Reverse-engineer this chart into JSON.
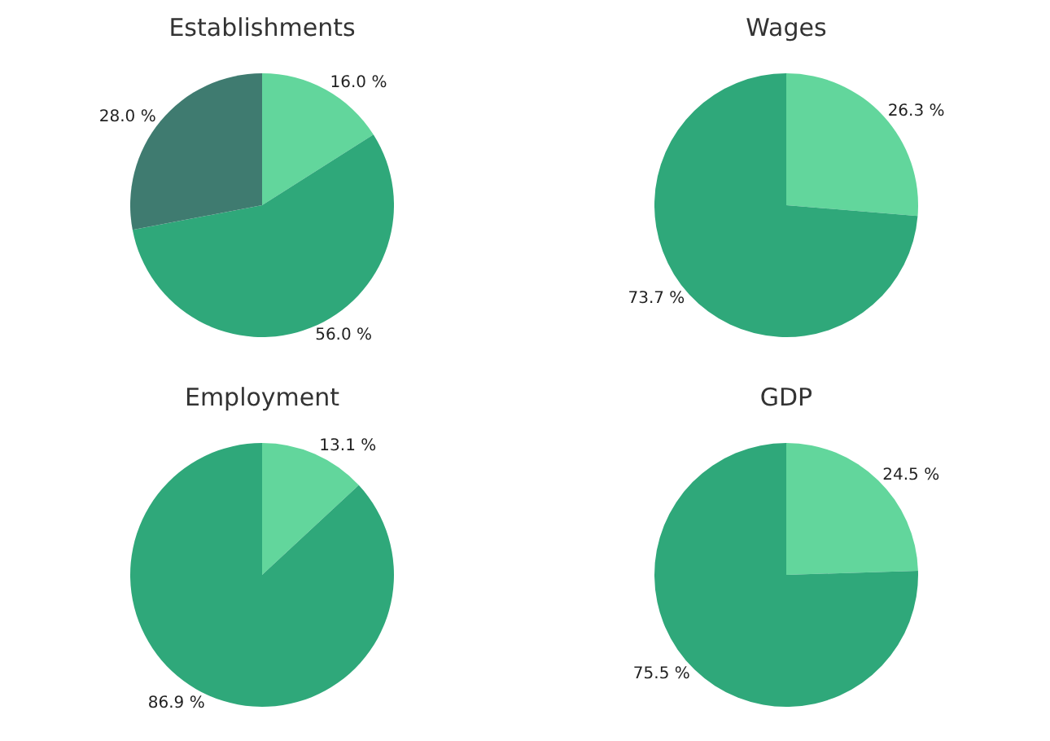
{
  "chart_data": [
    {
      "type": "pie",
      "title": "Establishments",
      "categories": [
        null,
        null,
        null
      ],
      "values": [
        16.0,
        56.0,
        28.0
      ],
      "colors": [
        "#62d69c",
        "#2fa87a",
        "#3f7b70"
      ],
      "value_labels": [
        "16.0 %",
        "56.0 %",
        "28.0 %"
      ],
      "legend": false
    },
    {
      "type": "pie",
      "title": "Wages",
      "categories": [
        null,
        null
      ],
      "values": [
        26.3,
        73.7
      ],
      "colors": [
        "#62d69c",
        "#2fa87a"
      ],
      "value_labels": [
        "26.3 %",
        "73.7 %"
      ],
      "legend": false
    },
    {
      "type": "pie",
      "title": "Employment",
      "categories": [
        null,
        null
      ],
      "values": [
        13.1,
        86.9
      ],
      "colors": [
        "#62d69c",
        "#2fa87a"
      ],
      "value_labels": [
        "13.1 %",
        "86.9 %"
      ],
      "legend": false
    },
    {
      "type": "pie",
      "title": "GDP",
      "categories": [
        null,
        null
      ],
      "values": [
        24.5,
        75.5
      ],
      "colors": [
        "#62d69c",
        "#2fa87a"
      ],
      "value_labels": [
        "24.5 %",
        "75.5 %"
      ],
      "legend": false
    }
  ]
}
